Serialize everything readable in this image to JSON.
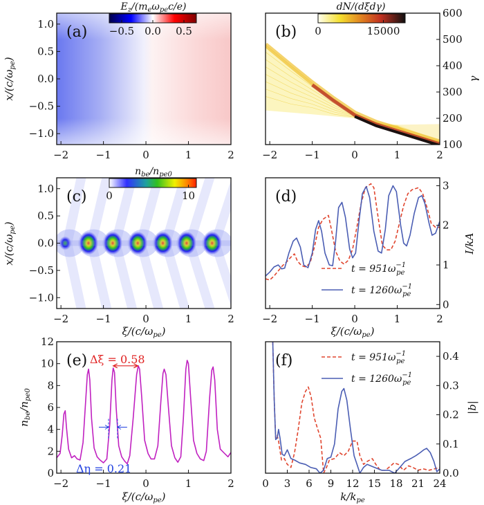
{
  "figure": {
    "panels": [
      "(a)",
      "(b)",
      "(c)",
      "(d)",
      "(e)",
      "(f)"
    ]
  },
  "chart_data": [
    {
      "id": "a",
      "type": "heatmap",
      "panel_label": "(a)",
      "title": "",
      "colorbar": {
        "label": "E_z/(m_e ω_pe c/e)",
        "ticks": [
          "−0.5",
          "0.0",
          "0.5"
        ],
        "range": [
          -0.7,
          0.7
        ],
        "colormap": "seismic"
      },
      "xlabel": "",
      "ylabel": "x/(c/ω_pe)",
      "xlim": [
        -2.1,
        2
      ],
      "ylim": [
        -1.2,
        1.2
      ],
      "xticks": [
        "−2",
        "−1",
        "0",
        "1",
        "2"
      ],
      "yticks": [
        "1.0",
        "0.5",
        "0.0",
        "−0.5",
        "−1.0"
      ],
      "description": "Longitudinal field: negative (blue, ~-0.35) at xi=-2 rising linearly to positive (red, ~+0.2) at xi=2; weak column modulations near axis"
    },
    {
      "id": "b",
      "type": "heatmap",
      "panel_label": "(b)",
      "colorbar": {
        "label": "dN/(dξdγ)",
        "ticks": [
          "0",
          "15000"
        ],
        "range": [
          0,
          20000
        ],
        "colormap": "hot_r"
      },
      "xlabel": "",
      "ylabel": "γ",
      "xlim": [
        -2.1,
        2
      ],
      "ylim": [
        100,
        600
      ],
      "xticks": [
        "−2",
        "−1",
        "0",
        "1",
        "2"
      ],
      "yticks": [
        "600",
        "500",
        "400",
        "300",
        "200",
        "100"
      ],
      "ridge": {
        "x": [
          -2.1,
          -1.5,
          -1,
          -0.5,
          0,
          0.5,
          1,
          1.5,
          2
        ],
        "y": [
          480,
          400,
          335,
          275,
          220,
          185,
          160,
          135,
          110
        ]
      },
      "lower_edge": {
        "x": [
          -2.1,
          -1,
          0,
          1,
          2
        ],
        "y": [
          230,
          215,
          200,
          175,
          115
        ]
      },
      "upper_fan": {
        "x": [
          1,
          2
        ],
        "y": [
          200,
          175
        ]
      }
    },
    {
      "id": "c",
      "type": "heatmap",
      "panel_label": "(c)",
      "colorbar": {
        "label": "n_be/n_pe0",
        "ticks": [
          "0",
          "10"
        ],
        "range": [
          0,
          11
        ],
        "colormap": "jet_white"
      },
      "xlabel": "ξ/(c/ω_pe)",
      "ylabel": "x/(c/ω_pe)",
      "xlim": [
        -2.1,
        2
      ],
      "ylim": [
        -1.2,
        1.2
      ],
      "xticks": [
        "−2",
        "−1",
        "0",
        "1",
        "2"
      ],
      "yticks": [
        "1.0",
        "0.5",
        "0.0",
        "−0.5",
        "−1.0"
      ],
      "bunches": [
        {
          "xi": -1.9,
          "peak": 5.5
        },
        {
          "xi": -1.33,
          "peak": 9.5
        },
        {
          "xi": -0.76,
          "peak": 9.6
        },
        {
          "xi": -0.17,
          "peak": 9.7
        },
        {
          "xi": 0.42,
          "peak": 9.4
        },
        {
          "xi": 0.98,
          "peak": 10.2
        },
        {
          "xi": 1.58,
          "peak": 9.7
        }
      ]
    },
    {
      "id": "d",
      "type": "line",
      "panel_label": "(d)",
      "xlabel": "ξ/(c/ω_pe)",
      "ylabel": "I/kA",
      "xlim": [
        -2.1,
        2
      ],
      "ylim": [
        -0.1,
        3.2
      ],
      "xticks": [
        "−2",
        "−1",
        "0",
        "1",
        "2"
      ],
      "yticks": [
        "0",
        "1",
        "2",
        "3"
      ],
      "legend": "bottom-right",
      "series": [
        {
          "name": "t = 951ω_pe^−1",
          "style": "dashed",
          "color": "#e0452e",
          "x": [
            -2.1,
            -2.0,
            -1.9,
            -1.8,
            -1.7,
            -1.6,
            -1.5,
            -1.42,
            -1.35,
            -1.25,
            -1.15,
            -1.05,
            -0.95,
            -0.85,
            -0.75,
            -0.62,
            -0.55,
            -0.45,
            -0.35,
            -0.25,
            -0.15,
            -0.05,
            0.05,
            0.15,
            0.25,
            0.38,
            0.45,
            0.55,
            0.65,
            0.75,
            0.85,
            0.95,
            1.05,
            1.15,
            1.25,
            1.35,
            1.5,
            1.6,
            1.7,
            1.8,
            1.9,
            2.0
          ],
          "y": [
            0.65,
            0.62,
            0.72,
            0.85,
            0.98,
            1.08,
            1.2,
            1.28,
            1.1,
            0.98,
            0.95,
            1.05,
            1.45,
            1.95,
            2.15,
            2.25,
            1.9,
            1.35,
            1.1,
            1.02,
            1.12,
            1.4,
            1.95,
            2.55,
            2.95,
            3.05,
            2.95,
            2.2,
            1.5,
            1.38,
            1.38,
            1.6,
            2.05,
            2.5,
            2.8,
            2.9,
            2.95,
            2.8,
            2.45,
            2.05,
            1.95,
            1.95
          ]
        },
        {
          "name": "t = 1260ω_pe^−1",
          "style": "solid",
          "color": "#4a5db3",
          "x": [
            -2.1,
            -2.0,
            -1.9,
            -1.8,
            -1.72,
            -1.65,
            -1.55,
            -1.45,
            -1.37,
            -1.28,
            -1.2,
            -1.1,
            -1.0,
            -0.92,
            -0.85,
            -0.78,
            -0.7,
            -0.6,
            -0.52,
            -0.45,
            -0.38,
            -0.3,
            -0.22,
            -0.12,
            -0.05,
            0.02,
            0.1,
            0.18,
            0.27,
            0.35,
            0.45,
            0.55,
            0.63,
            0.72,
            0.8,
            0.9,
            0.98,
            1.08,
            1.15,
            1.22,
            1.3,
            1.4,
            1.5,
            1.58,
            1.65,
            1.75,
            1.82,
            1.9,
            2.0
          ],
          "y": [
            0.72,
            0.82,
            0.95,
            1.0,
            0.9,
            0.92,
            1.3,
            1.6,
            1.68,
            1.45,
            1.0,
            0.93,
            1.3,
            1.9,
            2.12,
            1.85,
            1.3,
            1.0,
            0.98,
            1.6,
            2.45,
            2.58,
            2.2,
            1.4,
            1.18,
            1.3,
            2.1,
            2.8,
            2.98,
            2.7,
            1.85,
            1.35,
            1.3,
            1.9,
            2.75,
            3.0,
            2.85,
            2.0,
            1.55,
            1.48,
            1.75,
            2.3,
            2.7,
            2.75,
            2.55,
            2.05,
            1.75,
            1.8,
            2.1
          ]
        }
      ]
    },
    {
      "id": "e",
      "type": "line",
      "panel_label": "(e)",
      "xlabel": "ξ/(c/ω_pe)",
      "ylabel": "n_be/n_pe0",
      "xlim": [
        -2.1,
        2
      ],
      "ylim": [
        0,
        12
      ],
      "xticks": [
        "−2",
        "−1",
        "0",
        "1",
        "2"
      ],
      "yticks": [
        "0",
        "2",
        "4",
        "6",
        "8",
        "10",
        "12"
      ],
      "series": [
        {
          "name": "n_be/n_pe0",
          "color": "#c020c0",
          "x": [
            -2.1,
            -2.02,
            -1.97,
            -1.93,
            -1.9,
            -1.87,
            -1.82,
            -1.75,
            -1.68,
            -1.62,
            -1.55,
            -1.48,
            -1.42,
            -1.38,
            -1.35,
            -1.32,
            -1.28,
            -1.22,
            -1.15,
            -1.08,
            -1.0,
            -0.92,
            -0.85,
            -0.8,
            -0.77,
            -0.74,
            -0.7,
            -0.64,
            -0.57,
            -0.5,
            -0.44,
            -0.38,
            -0.3,
            -0.22,
            -0.18,
            -0.15,
            -0.1,
            -0.03,
            0.05,
            0.12,
            0.2,
            0.28,
            0.35,
            0.4,
            0.43,
            0.47,
            0.53,
            0.6,
            0.68,
            0.75,
            0.82,
            0.88,
            0.94,
            0.97,
            1.0,
            1.05,
            1.12,
            1.2,
            1.28,
            1.36,
            1.42,
            1.5,
            1.55,
            1.58,
            1.62,
            1.68,
            1.75,
            1.85,
            1.93,
            2.0
          ],
          "y": [
            1.4,
            1.8,
            3.5,
            5.4,
            5.7,
            4.2,
            2.2,
            1.4,
            1.6,
            1.3,
            1.2,
            2.8,
            6.5,
            9.0,
            9.5,
            8.5,
            5.0,
            2.3,
            1.5,
            1.2,
            0.95,
            1.3,
            4.5,
            8.5,
            9.6,
            9.2,
            6.0,
            2.5,
            1.5,
            1.1,
            0.85,
            1.6,
            5.0,
            9.0,
            9.8,
            9.5,
            7.0,
            3.0,
            1.8,
            1.3,
            1.3,
            2.5,
            6.5,
            9.1,
            9.5,
            9.0,
            6.0,
            2.5,
            1.4,
            1.0,
            1.5,
            5.0,
            9.5,
            10.3,
            10.0,
            7.0,
            3.0,
            1.8,
            1.3,
            1.15,
            2.0,
            7.0,
            9.4,
            9.7,
            8.5,
            4.0,
            2.2,
            1.8,
            1.5,
            1.9
          ]
        }
      ],
      "annotations": [
        {
          "text": "Δξ = 0.58",
          "color": "#e02020",
          "type": "double-arrow",
          "x": [
            -0.77,
            -0.19
          ],
          "y": 9.8
        },
        {
          "text": "Δη = 0.21",
          "color": "#2040e0",
          "type": "inward-arrows",
          "x": [
            -0.88,
            -0.67
          ],
          "y": 4.2
        }
      ]
    },
    {
      "id": "f",
      "type": "line",
      "panel_label": "(f)",
      "xlabel": "k/k_pe",
      "ylabel": "|b|",
      "xlim": [
        0,
        24
      ],
      "ylim": [
        0,
        0.45
      ],
      "xticks": [
        "0",
        "3",
        "6",
        "9",
        "12",
        "15",
        "18",
        "21",
        "24"
      ],
      "yticks": [
        "0.0",
        "0.1",
        "0.2",
        "0.3",
        "0.4"
      ],
      "legend": "top-right",
      "series": [
        {
          "name": "t = 951ω_pe^−1",
          "style": "dashed",
          "color": "#e0452e",
          "x": [
            1.0,
            1.2,
            1.4,
            1.6,
            1.8,
            2.2,
            2.6,
            3.0,
            3.5,
            4.0,
            4.5,
            5.0,
            5.5,
            5.9,
            6.3,
            6.7,
            7.2,
            7.6,
            8.0,
            8.4,
            8.8,
            9.5,
            10.2,
            10.8,
            11.4,
            12.0,
            12.6,
            13.0,
            13.5,
            14.0,
            14.7,
            15.2,
            15.8,
            16.5,
            17.0,
            17.7,
            18.3,
            19.0,
            19.7,
            20.3,
            21.0,
            21.7,
            22.5,
            23.3,
            24.0
          ],
          "y": [
            0.45,
            0.25,
            0.12,
            0.13,
            0.11,
            0.045,
            0.05,
            0.03,
            0.02,
            0.07,
            0.15,
            0.24,
            0.28,
            0.295,
            0.26,
            0.19,
            0.15,
            0.12,
            0.0,
            0.02,
            0.045,
            0.05,
            0.07,
            0.06,
            0.075,
            0.11,
            0.11,
            0.06,
            0.03,
            0.04,
            0.05,
            0.03,
            0.01,
            0.01,
            0.02,
            0.035,
            0.03,
            0.01,
            0.025,
            0.02,
            0.01,
            0.015,
            0.01,
            0.015,
            0.02
          ]
        },
        {
          "name": "t = 1260ω_pe^−1",
          "style": "solid",
          "color": "#4a5db3",
          "x": [
            1.0,
            1.2,
            1.4,
            1.6,
            1.8,
            2.0,
            2.3,
            2.6,
            3.0,
            3.5,
            4.0,
            4.7,
            5.5,
            6.2,
            7.0,
            7.5,
            8.0,
            8.5,
            9.0,
            9.5,
            10.0,
            10.5,
            10.8,
            11.2,
            11.7,
            12.2,
            12.6,
            13.0,
            13.5,
            14.0,
            15.0,
            16.0,
            17.0,
            17.8,
            18.5,
            19.2,
            20.0,
            20.7,
            21.3,
            21.8,
            22.2,
            22.7,
            23.2,
            23.6,
            24.0
          ],
          "y": [
            0.45,
            0.25,
            0.115,
            0.12,
            0.15,
            0.12,
            0.065,
            0.06,
            0.08,
            0.05,
            0.045,
            0.035,
            0.03,
            0.02,
            0.015,
            0.0,
            0.01,
            0.05,
            0.055,
            0.1,
            0.22,
            0.28,
            0.29,
            0.25,
            0.15,
            0.06,
            0.03,
            0.0,
            0.02,
            0.03,
            0.02,
            0.01,
            0.01,
            0.0,
            0.02,
            0.04,
            0.05,
            0.06,
            0.07,
            0.08,
            0.085,
            0.07,
            0.04,
            0.005,
            0.015
          ]
        }
      ]
    }
  ],
  "legend": {
    "t951": "t = 951ω",
    "t1260": "t = 1260ω",
    "sub": "pe",
    "sup": "−1"
  },
  "labels": {
    "a": {
      "panel": "(a)",
      "cb_title": "E",
      "cb_ticks": [
        "−0.5",
        "0.0",
        "0.5"
      ],
      "ylabel": "x/(c/ω"
    },
    "b": {
      "panel": "(b)",
      "cb_title": "dN/(dξdγ)",
      "cb_ticks": [
        "0",
        "15000"
      ],
      "ylabel": "γ"
    },
    "c": {
      "panel": "(c)",
      "cb_title": "n",
      "cb_ticks": [
        "0",
        "10"
      ]
    },
    "d": {
      "panel": "(d)",
      "ylabel": "I/kA"
    },
    "e": {
      "panel": "(e)",
      "annot_dxi": "Δξ = 0.58",
      "annot_deta": "Δη = 0.21"
    },
    "f": {
      "panel": "(f)",
      "ylabel": "|b|",
      "xlabel": "k/k"
    }
  }
}
